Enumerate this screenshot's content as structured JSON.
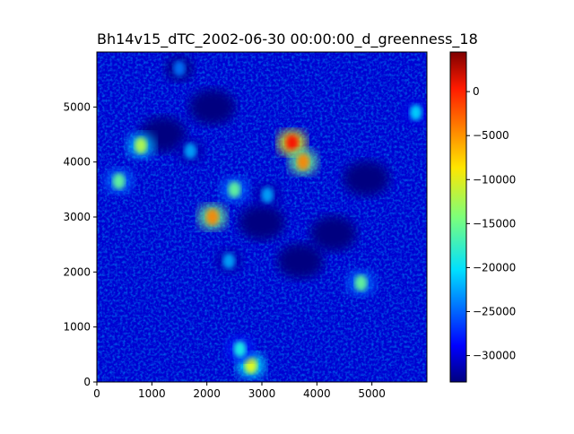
{
  "chart_data": {
    "type": "heatmap",
    "title": "Bh14v15_dTC_2002-06-30 00:00:00_d_greenness_18",
    "xlabel": "",
    "ylabel": "",
    "xlim": [
      0,
      6000
    ],
    "ylim": [
      0,
      6000
    ],
    "x_ticks": [
      0,
      1000,
      2000,
      3000,
      4000,
      5000
    ],
    "y_ticks": [
      0,
      1000,
      2000,
      3000,
      4000,
      5000
    ],
    "colormap": "jet",
    "colorbar": {
      "range": [
        -33000,
        4500
      ],
      "ticks": [
        0,
        -5000,
        -10000,
        -15000,
        -20000,
        -25000,
        -30000
      ]
    },
    "dominant_value": -30000,
    "hotspots": [
      {
        "x": 3550,
        "y": 4350,
        "value": 0
      },
      {
        "x": 3750,
        "y": 4000,
        "value": -5000
      },
      {
        "x": 2100,
        "y": 3000,
        "value": -5000
      },
      {
        "x": 2800,
        "y": 300,
        "value": -10000
      },
      {
        "x": 800,
        "y": 4300,
        "value": -12000
      },
      {
        "x": 4800,
        "y": 1800,
        "value": -15000
      },
      {
        "x": 2500,
        "y": 3500,
        "value": -15000
      },
      {
        "x": 2600,
        "y": 600,
        "value": -18000
      },
      {
        "x": 400,
        "y": 3650,
        "value": -15000
      },
      {
        "x": 1700,
        "y": 4200,
        "value": -22000
      },
      {
        "x": 2400,
        "y": 2200,
        "value": -22000
      },
      {
        "x": 3100,
        "y": 3400,
        "value": -22000
      },
      {
        "x": 5800,
        "y": 4900,
        "value": -20000
      },
      {
        "x": 1500,
        "y": 5700,
        "value": -24000
      }
    ],
    "dark_patches": [
      {
        "x": 3000,
        "y": 2900,
        "value": -33000
      },
      {
        "x": 4900,
        "y": 3700,
        "value": -33000
      },
      {
        "x": 4300,
        "y": 2700,
        "value": -33000
      },
      {
        "x": 2100,
        "y": 5000,
        "value": -33000
      },
      {
        "x": 1200,
        "y": 4500,
        "value": -33000
      },
      {
        "x": 3700,
        "y": 2200,
        "value": -33000
      }
    ]
  }
}
